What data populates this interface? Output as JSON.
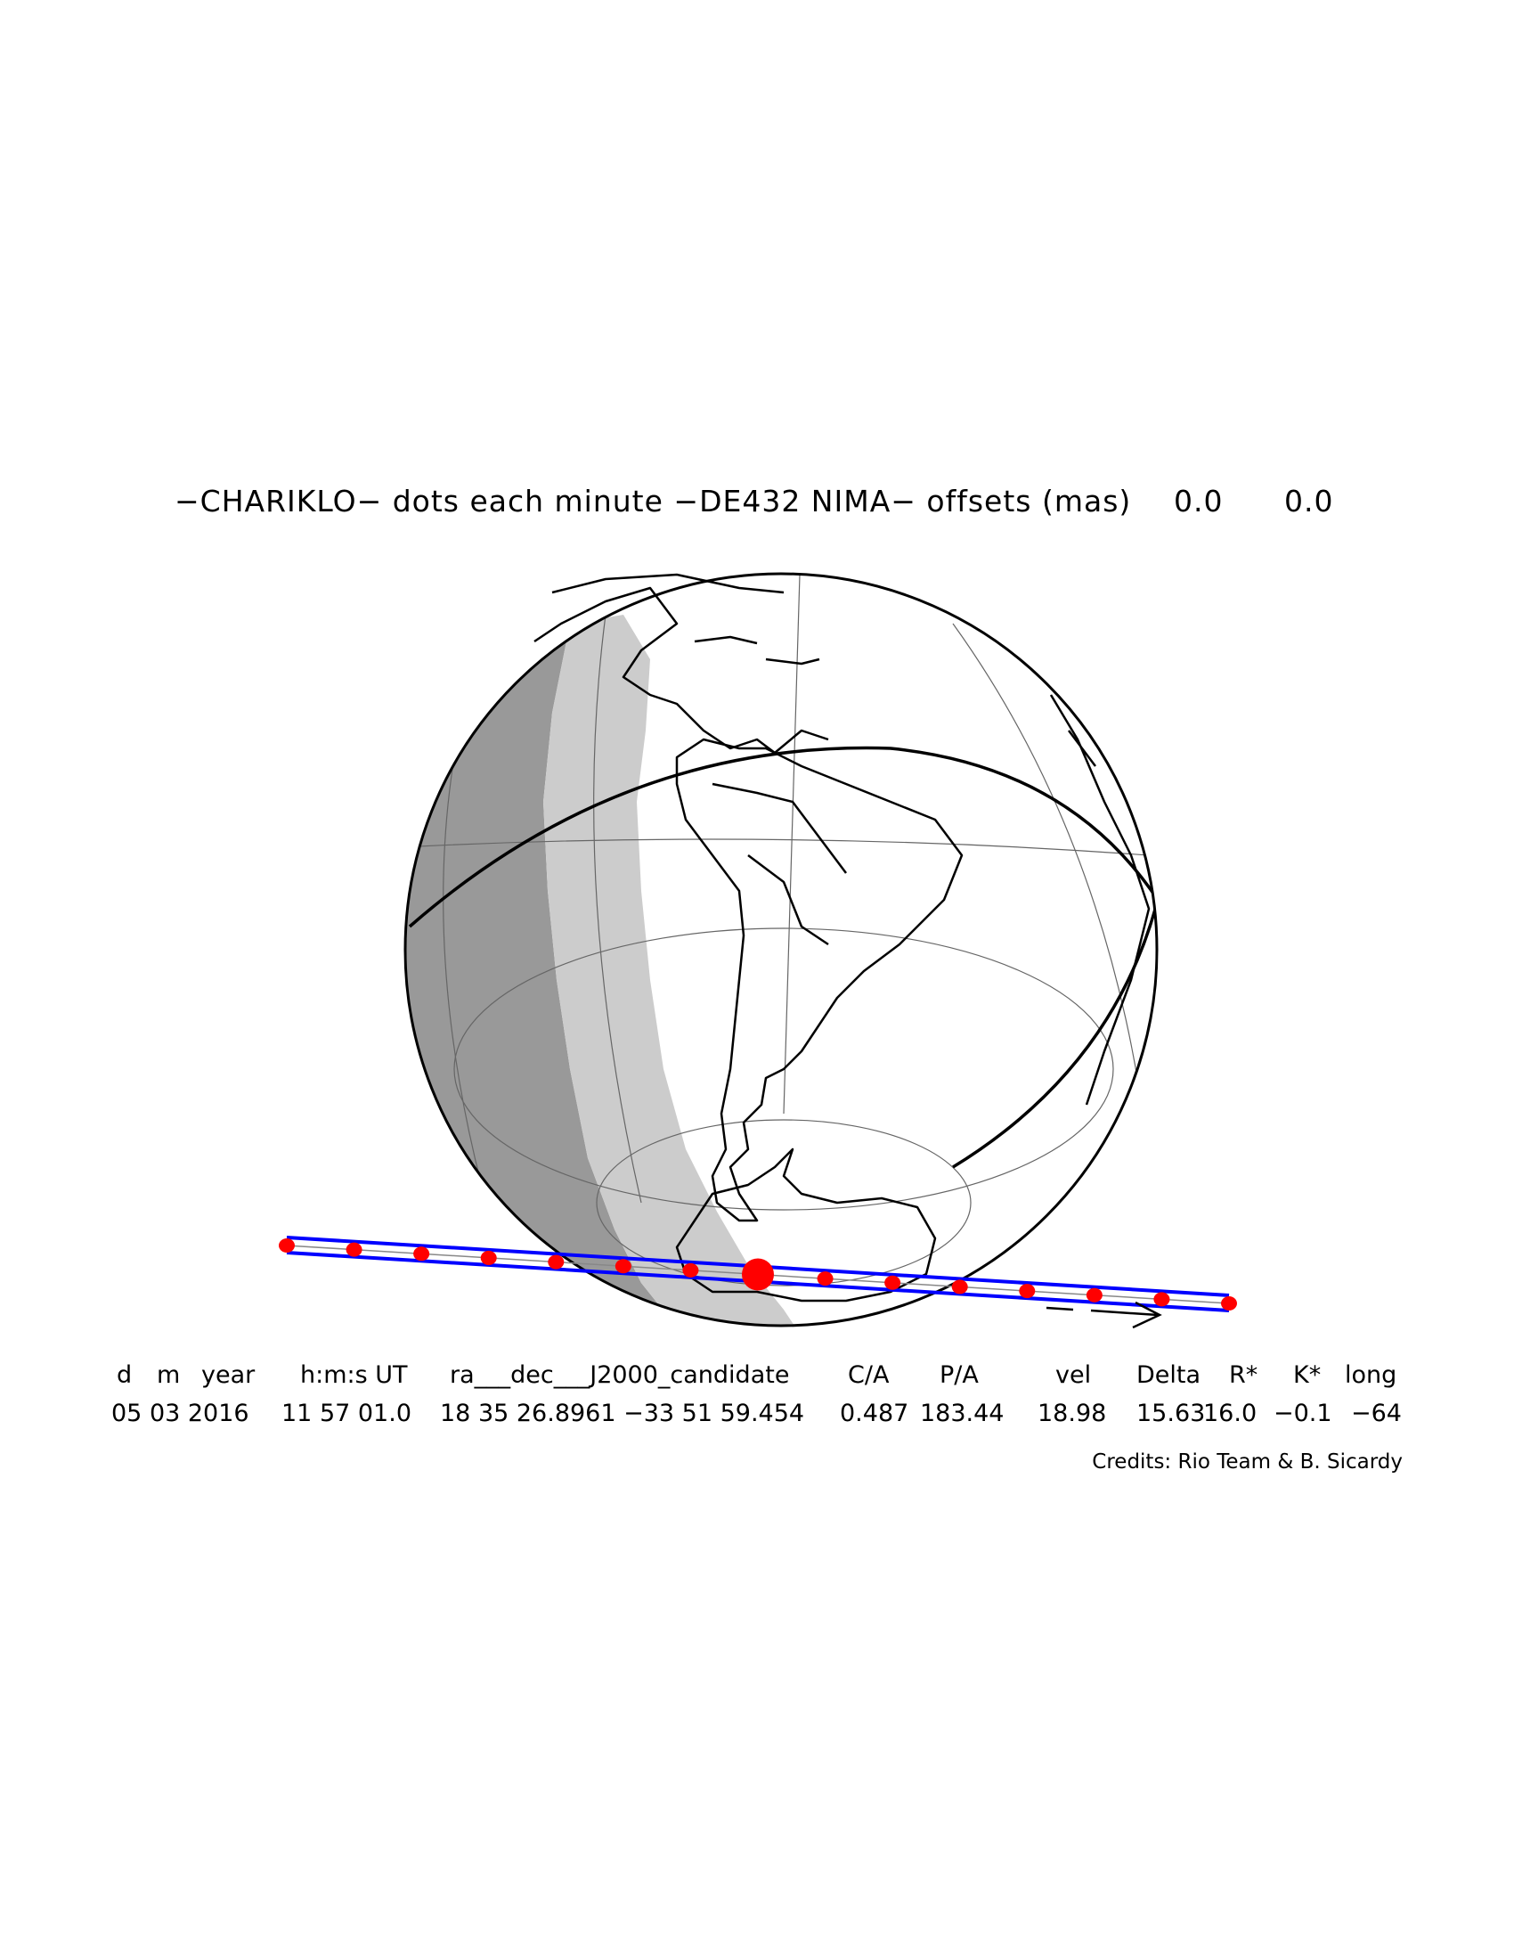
{
  "title": {
    "text": "−CHARIKLO− dots each minute −DE432 NIMA− offsets (mas)",
    "offset_ra": "0.0",
    "offset_dec": "0.0"
  },
  "table": {
    "headers": [
      "d",
      "m",
      "year",
      "h:m:s UT",
      "ra___dec___J2000_candidate",
      "C/A",
      "P/A",
      "vel",
      "Delta",
      "R*",
      "K*",
      "long"
    ],
    "values": [
      "05 03 2016",
      "11 57 01.0",
      "18 35 26.8961 −33 51 59.454",
      "0.487",
      "183.44",
      "18.98",
      "15.63",
      "16.0",
      "−0.1",
      "−64"
    ]
  },
  "credits": "Credits: Rio Team & B. Sicardy",
  "colors": {
    "path": "#0000ff",
    "dots": "#ff0000",
    "night": "#999999",
    "twilight": "#cccccc",
    "coast": "#000000"
  },
  "map_features": {
    "globe": "orthographic-earth",
    "centered_on": "south-america",
    "shadow_path_dots": 15,
    "closest_approach_dot_index": 7
  }
}
